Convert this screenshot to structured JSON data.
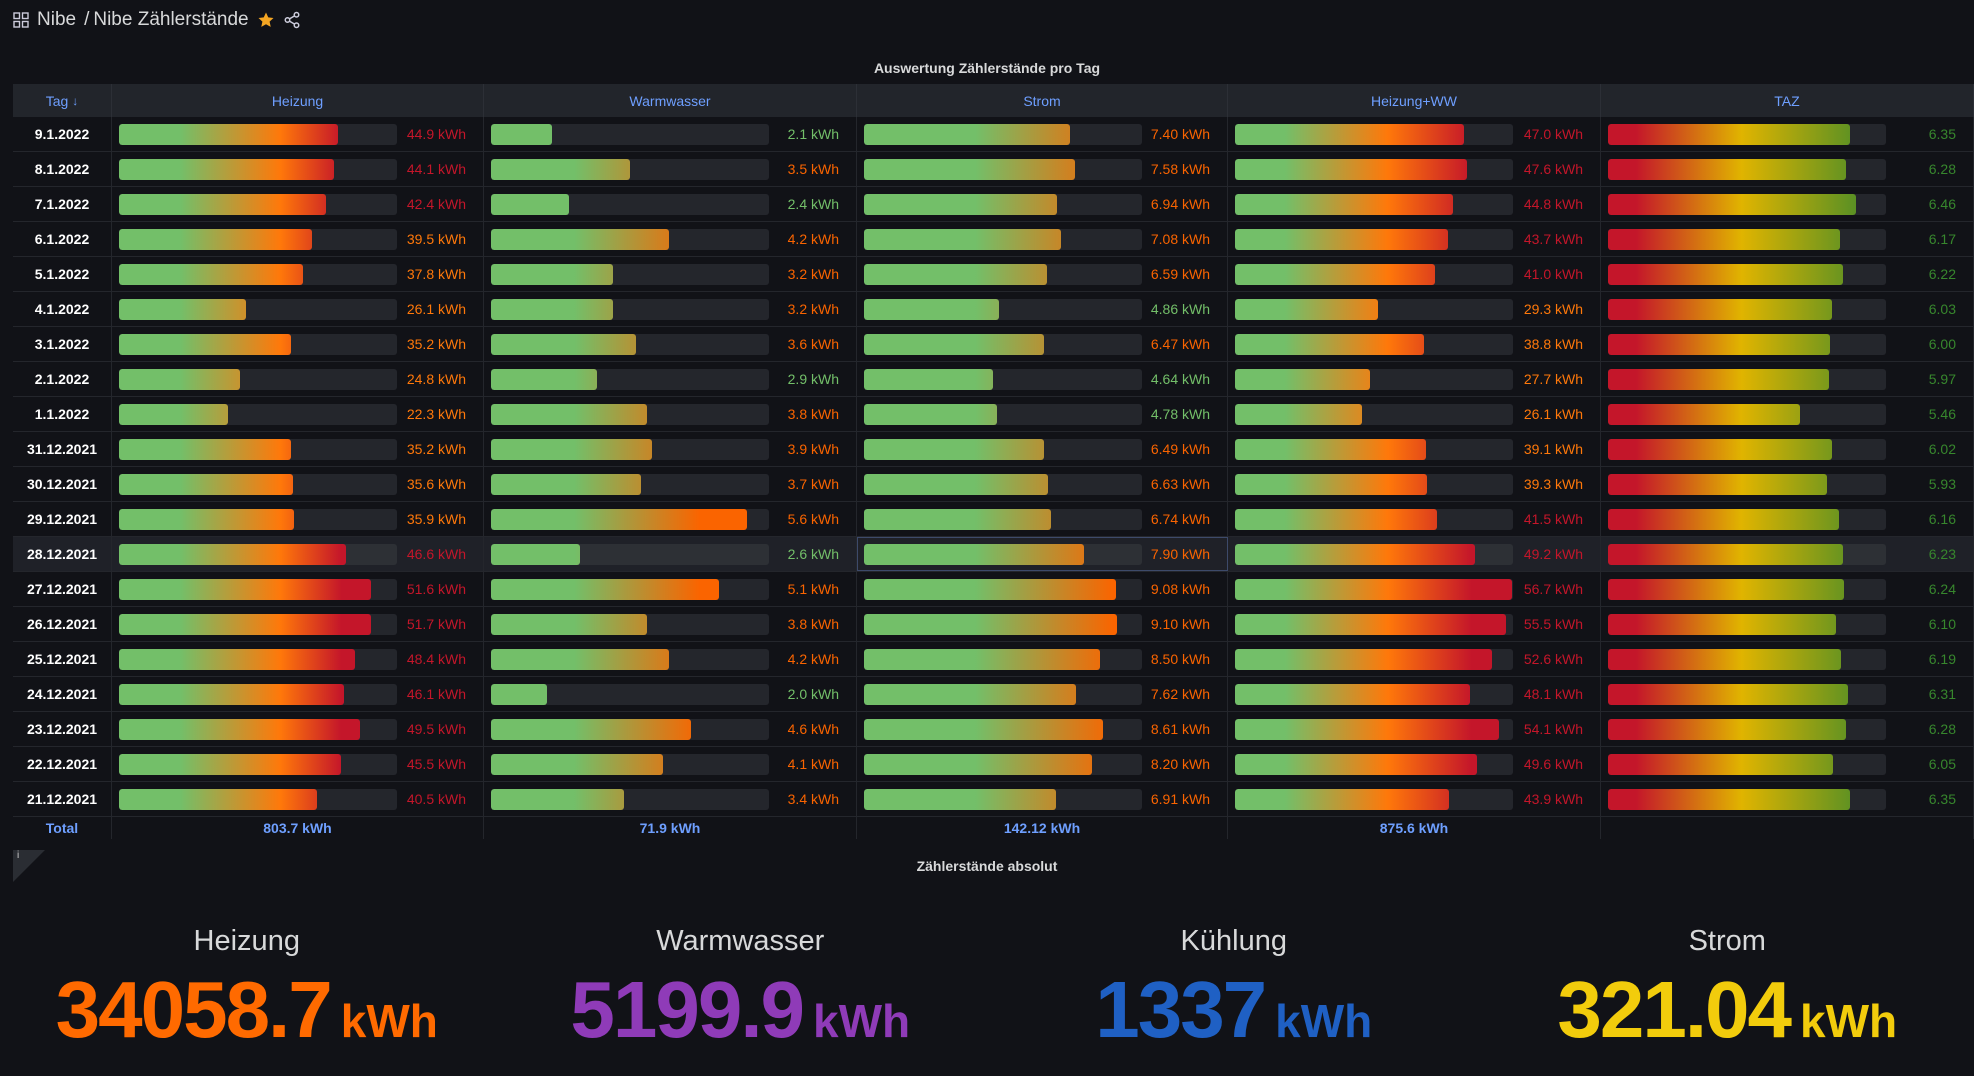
{
  "header": {
    "folder": "Nibe",
    "separator": "/",
    "title": "Nibe Zählerstände"
  },
  "panel1": {
    "title": "Auswertung Zählerstände pro Tag"
  },
  "columns": [
    {
      "label": "Tag",
      "sort": "↓"
    },
    {
      "label": "Heizung",
      "min": 0,
      "max": 57,
      "gradient": "linear-gradient(90deg,#73bf69 0%,#73bf69 22%,#ff780a 58%,#c4162a 80%,#c4162a 100%)",
      "threshold": 40,
      "below": "#ff780a",
      "above": "#c4162a"
    },
    {
      "label": "Warmwasser",
      "min": 1,
      "max": 6,
      "gradient": "linear-gradient(90deg,#73bf69 0%,#73bf69 30%,#fa6400 75%,#fa6400 100%)",
      "threshold": 3,
      "below": "#73bf69",
      "above": "#fa6400"
    },
    {
      "label": "Strom",
      "min": 0,
      "max": 10,
      "gradient": "linear-gradient(90deg,#73bf69 0%,#73bf69 40%,#fa6400 90%,#fa6400 100%)",
      "threshold": 5,
      "below": "#73bf69",
      "above": "#fa6400"
    },
    {
      "label": "Heizung+WW",
      "min": 0,
      "max": 57,
      "gradient": "linear-gradient(90deg,#73bf69 0%,#73bf69 18%,#ff780a 55%,#c4162a 85%,#c4162a 100%)",
      "threshold": 40,
      "below": "#ff780a",
      "above": "#c4162a"
    },
    {
      "label": "TAZ",
      "min": 2,
      "max": 7,
      "gradient": "linear-gradient(90deg,#c4162a 0%,#c4162a 10%,#e0b400 48%,#37872d 100%)",
      "threshold": 0,
      "below": "#37872d",
      "above": "#37872d"
    }
  ],
  "rows": [
    [
      "9.1.2022",
      "44.9 kWh",
      "2.1 kWh",
      "7.40 kWh",
      "47.0 kWh",
      "6.35"
    ],
    [
      "8.1.2022",
      "44.1 kWh",
      "3.5 kWh",
      "7.58 kWh",
      "47.6 kWh",
      "6.28"
    ],
    [
      "7.1.2022",
      "42.4 kWh",
      "2.4 kWh",
      "6.94 kWh",
      "44.8 kWh",
      "6.46"
    ],
    [
      "6.1.2022",
      "39.5 kWh",
      "4.2 kWh",
      "7.08 kWh",
      "43.7 kWh",
      "6.17"
    ],
    [
      "5.1.2022",
      "37.8 kWh",
      "3.2 kWh",
      "6.59 kWh",
      "41.0 kWh",
      "6.22"
    ],
    [
      "4.1.2022",
      "26.1 kWh",
      "3.2 kWh",
      "4.86 kWh",
      "29.3 kWh",
      "6.03"
    ],
    [
      "3.1.2022",
      "35.2 kWh",
      "3.6 kWh",
      "6.47 kWh",
      "38.8 kWh",
      "6.00"
    ],
    [
      "2.1.2022",
      "24.8 kWh",
      "2.9 kWh",
      "4.64 kWh",
      "27.7 kWh",
      "5.97"
    ],
    [
      "1.1.2022",
      "22.3 kWh",
      "3.8 kWh",
      "4.78 kWh",
      "26.1 kWh",
      "5.46"
    ],
    [
      "31.12.2021",
      "35.2 kWh",
      "3.9 kWh",
      "6.49 kWh",
      "39.1 kWh",
      "6.02"
    ],
    [
      "30.12.2021",
      "35.6 kWh",
      "3.7 kWh",
      "6.63 kWh",
      "39.3 kWh",
      "5.93"
    ],
    [
      "29.12.2021",
      "35.9 kWh",
      "5.6 kWh",
      "6.74 kWh",
      "41.5 kWh",
      "6.16"
    ],
    [
      "28.12.2021",
      "46.6 kWh",
      "2.6 kWh",
      "7.90 kWh",
      "49.2 kWh",
      "6.23"
    ],
    [
      "27.12.2021",
      "51.6 kWh",
      "5.1 kWh",
      "9.08 kWh",
      "56.7 kWh",
      "6.24"
    ],
    [
      "26.12.2021",
      "51.7 kWh",
      "3.8 kWh",
      "9.10 kWh",
      "55.5 kWh",
      "6.10"
    ],
    [
      "25.12.2021",
      "48.4 kWh",
      "4.2 kWh",
      "8.50 kWh",
      "52.6 kWh",
      "6.19"
    ],
    [
      "24.12.2021",
      "46.1 kWh",
      "2.0 kWh",
      "7.62 kWh",
      "48.1 kWh",
      "6.31"
    ],
    [
      "23.12.2021",
      "49.5 kWh",
      "4.6 kWh",
      "8.61 kWh",
      "54.1 kWh",
      "6.28"
    ],
    [
      "22.12.2021",
      "45.5 kWh",
      "4.1 kWh",
      "8.20 kWh",
      "49.6 kWh",
      "6.05"
    ],
    [
      "21.12.2021",
      "40.5 kWh",
      "3.4 kWh",
      "6.91 kWh",
      "43.9 kWh",
      "6.35"
    ]
  ],
  "hover_row": 12,
  "totals": [
    "Total",
    "803.7 kWh",
    "71.9 kWh",
    "142.12 kWh",
    "875.6 kWh",
    ""
  ],
  "panel2": {
    "title": "Zählerstände absolut",
    "info": "i"
  },
  "stats": [
    {
      "label": "Heizung",
      "value": "34058.7",
      "unit": "kWh",
      "color": "#ff6a00"
    },
    {
      "label": "Warmwasser",
      "value": "5199.9",
      "unit": "kWh",
      "color": "#8f3bb8"
    },
    {
      "label": "Kühlung",
      "value": "1337",
      "unit": "kWh",
      "color": "#1f60c4"
    },
    {
      "label": "Strom",
      "value": "321.04",
      "unit": "kWh",
      "color": "#f2cc0c"
    }
  ]
}
